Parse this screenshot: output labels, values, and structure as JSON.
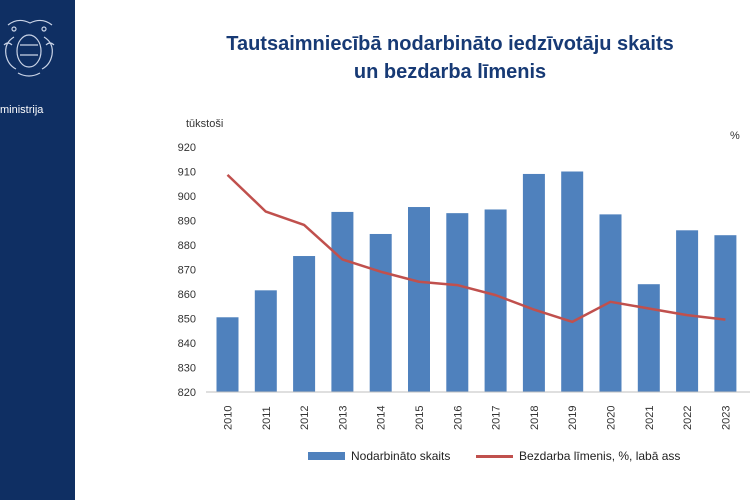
{
  "sidebar": {
    "ministry_text": "ministrija",
    "background": "#0f2f63"
  },
  "title": {
    "line1": "Tautsaimniecībā nodarbināto iedzīvotāju skaits",
    "line2": "un bezdarba līmenis"
  },
  "chart_data": {
    "type": "bar",
    "categories": [
      "2010",
      "2011",
      "2012",
      "2013",
      "2014",
      "2015",
      "2016",
      "2017",
      "2018",
      "2019",
      "2020",
      "2021",
      "2022",
      "2023"
    ],
    "series": [
      {
        "name": "Nodarbināto skaits",
        "type": "bar",
        "axis": "left",
        "color": "#4f81bd",
        "values": [
          850.5,
          861.5,
          875.5,
          893.5,
          884.5,
          895.5,
          893.0,
          894.5,
          909.0,
          910.0,
          892.5,
          864.0,
          886.0,
          884.0
        ]
      },
      {
        "name": "Bezdarba līmenis, %, labā ass",
        "type": "line",
        "axis": "right",
        "color": "#c0504d",
        "values": [
          19.5,
          16.2,
          15.0,
          11.9,
          10.8,
          9.9,
          9.6,
          8.7,
          7.4,
          6.3,
          8.1,
          7.5,
          6.9,
          6.5
        ]
      }
    ],
    "y_left": {
      "label": "tūkstoši",
      "ylim": [
        820,
        920
      ],
      "ticks": [
        820,
        830,
        840,
        850,
        860,
        870,
        880,
        890,
        900,
        910,
        920
      ]
    },
    "y_right": {
      "label": "%",
      "ylim": [
        0,
        22
      ]
    },
    "legend_position": "bottom",
    "grid": false
  }
}
